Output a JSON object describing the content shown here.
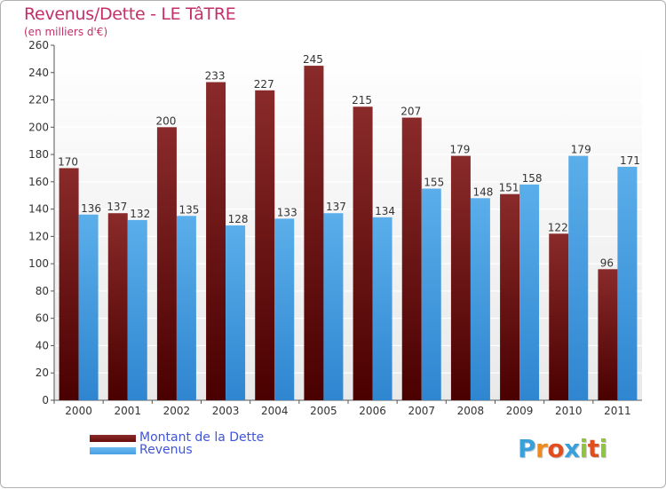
{
  "header": {
    "title": "Revenus/Dette - LE TâTRE",
    "subtitle": "(en milliers d'€)"
  },
  "legend": {
    "items": [
      {
        "label": "Montant de la Dette",
        "color": "#6b0d0d"
      },
      {
        "label": "Revenus",
        "color": "#4aa0e6"
      }
    ]
  },
  "logo": {
    "letters": [
      "P",
      "r",
      "o",
      "x",
      "i",
      "t",
      "i"
    ],
    "colors": [
      "#3aa0dc",
      "#f08a1c",
      "#e24d1d",
      "#3aa0dc",
      "#8fc43c",
      "#e24d1d",
      "#8fc43c"
    ]
  },
  "chart_data": {
    "type": "bar",
    "title": "Revenus/Dette - LE TâTRE",
    "subtitle": "(en milliers d'€)",
    "categories": [
      "2000",
      "2001",
      "2002",
      "2003",
      "2004",
      "2005",
      "2006",
      "2007",
      "2008",
      "2009",
      "2010",
      "2011"
    ],
    "series": [
      {
        "name": "Montant de la Dette",
        "values": [
          170,
          137,
          200,
          233,
          227,
          245,
          215,
          207,
          179,
          151,
          122,
          96
        ],
        "color": "#6b0d0d"
      },
      {
        "name": "Revenus",
        "values": [
          136,
          132,
          135,
          128,
          133,
          137,
          134,
          155,
          148,
          158,
          179,
          171
        ],
        "color": "#4aa0e6"
      }
    ],
    "ylim": [
      0,
      260
    ],
    "yticks": [
      0,
      20,
      40,
      60,
      80,
      100,
      120,
      140,
      160,
      180,
      200,
      220,
      240,
      260
    ],
    "grid": true,
    "legend_position": "bottom-left"
  }
}
